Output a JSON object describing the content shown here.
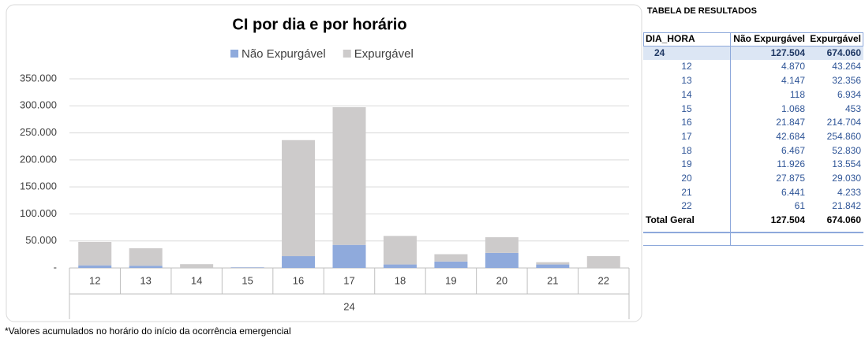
{
  "chart_data": {
    "type": "stacked_bar",
    "title": "CI por dia e por horário",
    "categories": [
      "12",
      "13",
      "14",
      "15",
      "16",
      "17",
      "18",
      "19",
      "20",
      "21",
      "22"
    ],
    "group_label": "24",
    "series": [
      {
        "name": "Não Expurgável",
        "color": "#8faadc",
        "values": [
          4870,
          4147,
          118,
          1068,
          21847,
          42684,
          6467,
          11926,
          27875,
          6441,
          61
        ]
      },
      {
        "name": "Expurgável",
        "color": "#cdcbcb",
        "values": [
          43264,
          32356,
          6934,
          453,
          214704,
          254860,
          52830,
          13554,
          29030,
          4233,
          21842
        ]
      }
    ],
    "ylim": [
      0,
      350000
    ],
    "yticks": [
      {
        "value": 0,
        "label": "-"
      },
      {
        "value": 50000,
        "label": "50.000"
      },
      {
        "value": 100000,
        "label": "100.000"
      },
      {
        "value": 150000,
        "label": "150.000"
      },
      {
        "value": 200000,
        "label": "200.000"
      },
      {
        "value": 250000,
        "label": "250.000"
      },
      {
        "value": 300000,
        "label": "300.000"
      },
      {
        "value": 350000,
        "label": "350.000"
      }
    ],
    "grid": true,
    "legend": "top"
  },
  "footnote": "*Valores acumulados no horário do início da ocorrência emergencial",
  "table": {
    "title": "TABELA DE RESULTADOS",
    "header": [
      "DIA_HORA",
      "Não Expurgável",
      "Expurgável"
    ],
    "group_row": [
      "24",
      "127.504",
      "674.060"
    ],
    "rows": [
      [
        "12",
        "4.870",
        "43.264"
      ],
      [
        "13",
        "4.147",
        "32.356"
      ],
      [
        "14",
        "118",
        "6.934"
      ],
      [
        "15",
        "1.068",
        "453"
      ],
      [
        "16",
        "21.847",
        "214.704"
      ],
      [
        "17",
        "42.684",
        "254.860"
      ],
      [
        "18",
        "6.467",
        "52.830"
      ],
      [
        "19",
        "11.926",
        "13.554"
      ],
      [
        "20",
        "27.875",
        "29.030"
      ],
      [
        "21",
        "6.441",
        "4.233"
      ],
      [
        "22",
        "61",
        "21.842"
      ]
    ],
    "total_row": [
      "Total Geral",
      "127.504",
      "674.060"
    ]
  }
}
